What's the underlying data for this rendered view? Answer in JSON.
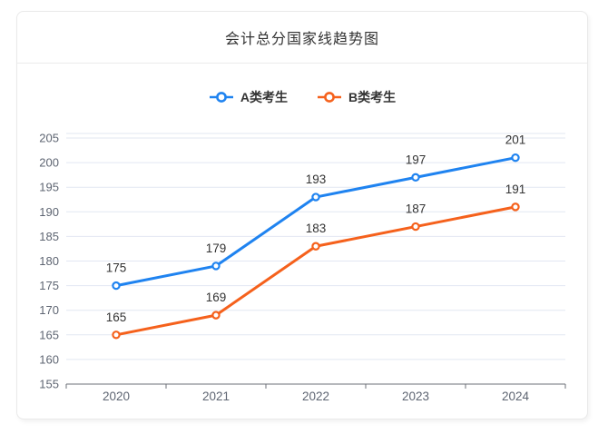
{
  "chart_data": {
    "type": "line",
    "title": "会计总分国家线趋势图",
    "categories": [
      "2020",
      "2021",
      "2022",
      "2023",
      "2024"
    ],
    "series": [
      {
        "name": "A类考生",
        "color": "#1f83f0",
        "values": [
          175,
          179,
          193,
          197,
          201
        ]
      },
      {
        "name": "B类考生",
        "color": "#f5611c",
        "values": [
          165,
          169,
          183,
          187,
          191
        ]
      }
    ],
    "ylim": [
      155,
      205
    ],
    "y_tick_step": 5,
    "y_tick_labels": [
      "155",
      "160",
      "165",
      "170",
      "175",
      "180",
      "185",
      "190",
      "195",
      "200",
      "205"
    ],
    "xlabel": "",
    "ylabel": "",
    "grid": true,
    "data_labels": true,
    "legend_position": "top",
    "marker": "hollow-circle",
    "colors": {
      "gridline": "#e2e7f2",
      "axis_line": "#6e7079",
      "axis_label": "#5e6572",
      "data_label": "#333333"
    }
  }
}
